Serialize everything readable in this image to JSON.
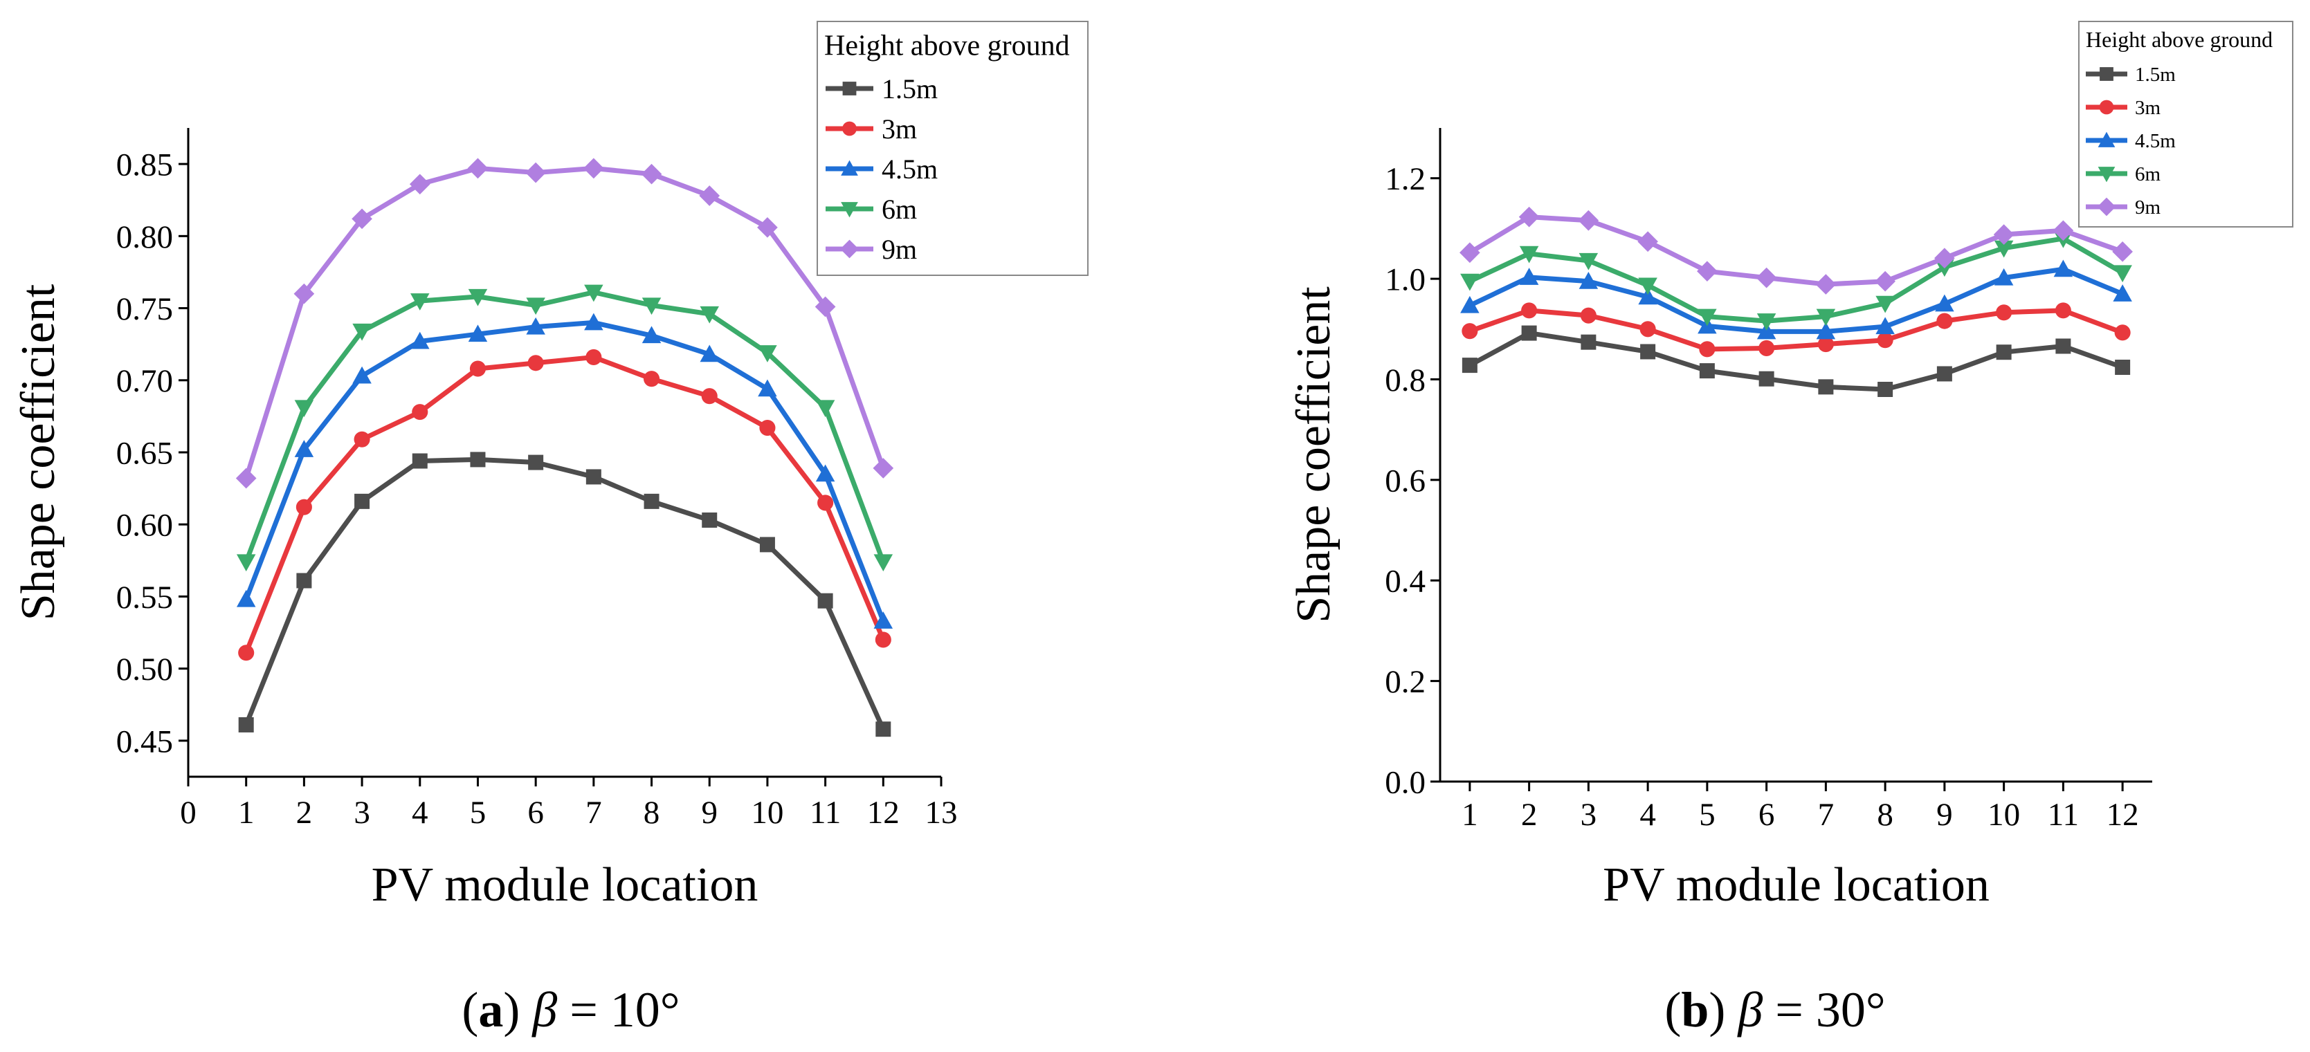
{
  "figure": {
    "panels": [
      {
        "letter": "a",
        "symbol": "β",
        "value_text": "= 10°"
      },
      {
        "letter": "b",
        "symbol": "β",
        "value_text": "= 30°"
      }
    ]
  },
  "chart_data": [
    {
      "type": "line",
      "panel": "(a) β = 10°",
      "title": "",
      "xlabel": "PV module location",
      "ylabel": "Shape coefficient",
      "xlim": [
        0,
        13
      ],
      "ylim": [
        0.425,
        0.875
      ],
      "xticks": [
        "0",
        "1",
        "2",
        "3",
        "4",
        "5",
        "6",
        "7",
        "8",
        "9",
        "10",
        "11",
        "12",
        "13"
      ],
      "yticks": [
        "0.45",
        "0.50",
        "0.55",
        "0.60",
        "0.65",
        "0.70",
        "0.75",
        "0.80",
        "0.85"
      ],
      "legend_title": "Height above ground",
      "legend_position": "top-right",
      "x": [
        1,
        2,
        3,
        4,
        5,
        6,
        7,
        8,
        9,
        10,
        11,
        12
      ],
      "series": [
        {
          "name": "1.5m",
          "color": "#4d4d4d",
          "marker": "square",
          "values": [
            0.461,
            0.561,
            0.616,
            0.644,
            0.645,
            0.643,
            0.633,
            0.616,
            0.603,
            0.586,
            0.547,
            0.458
          ]
        },
        {
          "name": "3m",
          "color": "#e8383d",
          "marker": "circle",
          "values": [
            0.511,
            0.612,
            0.659,
            0.678,
            0.708,
            0.712,
            0.716,
            0.701,
            0.689,
            0.667,
            0.615,
            0.52
          ]
        },
        {
          "name": "4.5m",
          "color": "#1f6fd6",
          "marker": "triangle",
          "values": [
            0.548,
            0.652,
            0.703,
            0.727,
            0.732,
            0.737,
            0.74,
            0.731,
            0.718,
            0.694,
            0.635,
            0.533
          ]
        },
        {
          "name": "6m",
          "color": "#3bab6a",
          "marker": "triangle-down",
          "values": [
            0.574,
            0.681,
            0.734,
            0.755,
            0.758,
            0.752,
            0.761,
            0.752,
            0.746,
            0.719,
            0.681,
            0.574
          ]
        },
        {
          "name": "9m",
          "color": "#b07fe0",
          "marker": "diamond",
          "values": [
            0.632,
            0.76,
            0.812,
            0.836,
            0.847,
            0.844,
            0.847,
            0.843,
            0.828,
            0.806,
            0.751,
            0.639
          ]
        }
      ]
    },
    {
      "type": "line",
      "panel": "(b) β = 30°",
      "title": "",
      "xlabel": "PV module location",
      "ylabel": "Shape coefficient",
      "xlim": [
        0.5,
        12.5
      ],
      "ylim": [
        0,
        1.3
      ],
      "xticks": [
        "1",
        "2",
        "3",
        "4",
        "5",
        "6",
        "7",
        "8",
        "9",
        "10",
        "11",
        "12"
      ],
      "yticks": [
        "0.0",
        "0.2",
        "0.4",
        "0.6",
        "0.8",
        "1.0",
        "1.2"
      ],
      "legend_title": "Height above ground",
      "legend_position": "top-right",
      "x": [
        1,
        2,
        3,
        4,
        5,
        6,
        7,
        8,
        9,
        10,
        11,
        12
      ],
      "series": [
        {
          "name": "1.5m",
          "color": "#4d4d4d",
          "marker": "square",
          "values": [
            0.828,
            0.892,
            0.874,
            0.855,
            0.817,
            0.801,
            0.785,
            0.78,
            0.811,
            0.854,
            0.866,
            0.824
          ]
        },
        {
          "name": "3m",
          "color": "#e8383d",
          "marker": "circle",
          "values": [
            0.896,
            0.937,
            0.927,
            0.9,
            0.86,
            0.862,
            0.87,
            0.878,
            0.916,
            0.933,
            0.937,
            0.893
          ]
        },
        {
          "name": "4.5m",
          "color": "#1f6fd6",
          "marker": "triangle",
          "values": [
            0.947,
            1.003,
            0.995,
            0.964,
            0.906,
            0.895,
            0.895,
            0.905,
            0.95,
            1.002,
            1.019,
            0.97
          ]
        },
        {
          "name": "6m",
          "color": "#3bab6a",
          "marker": "triangle-down",
          "values": [
            0.995,
            1.05,
            1.036,
            0.987,
            0.925,
            0.916,
            0.925,
            0.951,
            1.023,
            1.061,
            1.08,
            1.012
          ]
        },
        {
          "name": "9m",
          "color": "#b07fe0",
          "marker": "diamond",
          "values": [
            1.052,
            1.123,
            1.116,
            1.074,
            1.015,
            1.002,
            0.989,
            0.995,
            1.041,
            1.088,
            1.096,
            1.054
          ]
        }
      ]
    }
  ]
}
